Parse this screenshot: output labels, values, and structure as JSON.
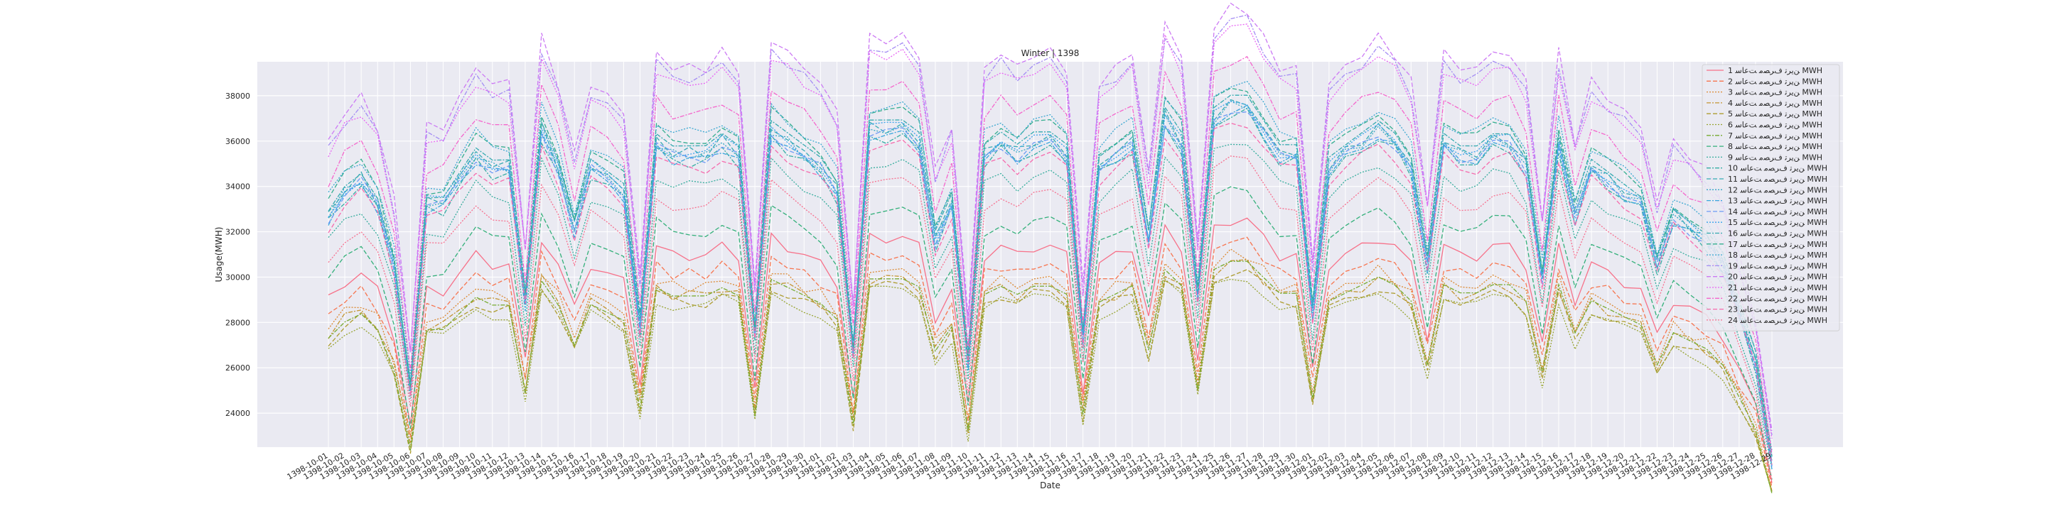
{
  "chart_data": {
    "type": "line",
    "title": "Winter | 1398",
    "xlabel": "Date",
    "ylabel": "Usage(MWH)",
    "ylim": [
      22500,
      39500
    ],
    "yticks": [
      24000,
      26000,
      28000,
      30000,
      32000,
      34000,
      36000,
      38000
    ],
    "grid": true,
    "legend_position": "top-right",
    "x": [
      "1398-10-01",
      "1398-10-02",
      "1398-10-03",
      "1398-10-04",
      "1398-10-05",
      "1398-10-06",
      "1398-10-07",
      "1398-10-08",
      "1398-10-09",
      "1398-10-10",
      "1398-10-11",
      "1398-10-12",
      "1398-10-13",
      "1398-10-14",
      "1398-10-15",
      "1398-10-16",
      "1398-10-17",
      "1398-10-18",
      "1398-10-19",
      "1398-10-20",
      "1398-10-21",
      "1398-10-22",
      "1398-10-23",
      "1398-10-24",
      "1398-10-25",
      "1398-10-26",
      "1398-10-27",
      "1398-10-28",
      "1398-10-29",
      "1398-10-30",
      "1398-11-01",
      "1398-11-02",
      "1398-11-03",
      "1398-11-04",
      "1398-11-05",
      "1398-11-06",
      "1398-11-07",
      "1398-11-08",
      "1398-11-09",
      "1398-11-10",
      "1398-11-11",
      "1398-11-12",
      "1398-11-13",
      "1398-11-14",
      "1398-11-15",
      "1398-11-16",
      "1398-11-17",
      "1398-11-18",
      "1398-11-19",
      "1398-11-20",
      "1398-11-21",
      "1398-11-22",
      "1398-11-23",
      "1398-11-24",
      "1398-11-25",
      "1398-11-26",
      "1398-11-27",
      "1398-11-28",
      "1398-11-29",
      "1398-11-30",
      "1398-12-01",
      "1398-12-02",
      "1398-12-03",
      "1398-12-04",
      "1398-12-05",
      "1398-12-06",
      "1398-12-07",
      "1398-12-08",
      "1398-12-09",
      "1398-12-10",
      "1398-12-11",
      "1398-12-12",
      "1398-12-13",
      "1398-12-14",
      "1398-12-15",
      "1398-12-16",
      "1398-12-17",
      "1398-12-18",
      "1398-12-19",
      "1398-12-20",
      "1398-12-21",
      "1398-12-22",
      "1398-12-23",
      "1398-12-24",
      "1398-12-25",
      "1398-12-26",
      "1398-12-27",
      "1398-12-28",
      "1398-12-29"
    ],
    "series_template": {
      "base": [
        1.0,
        1.02,
        1.03,
        1.01,
        0.96,
        0.86,
        1.01,
        1.01,
        1.03,
        1.05,
        1.04,
        1.04,
        0.93,
        1.07,
        1.04,
        0.99,
        1.04,
        1.03,
        1.02,
        0.91,
        1.06,
        1.05,
        1.05,
        1.05,
        1.06,
        1.05,
        0.9,
        1.07,
        1.06,
        1.05,
        1.04,
        1.02,
        0.89,
        1.07,
        1.07,
        1.07,
        1.06,
        0.98,
        1.01,
        0.88,
        1.05,
        1.06,
        1.05,
        1.06,
        1.06,
        1.05,
        0.9,
        1.04,
        1.05,
        1.06,
        0.98,
        1.08,
        1.06,
        0.93,
        1.08,
        1.09,
        1.09,
        1.07,
        1.05,
        1.05,
        0.92,
        1.04,
        1.05,
        1.06,
        1.07,
        1.06,
        1.04,
        0.96,
        1.06,
        1.05,
        1.05,
        1.06,
        1.06,
        1.04,
        0.95,
        1.06,
        1.0,
        1.04,
        1.03,
        1.02,
        1.01,
        0.96,
        1.0,
        0.99,
        0.98,
        0.96,
        0.92,
        0.88,
        0.8
      ],
      "comment_free": true
    },
    "series": [
      {
        "name": "ﻦﯾﺮﺗ ﻑﺮﺼﻣ ﺖﻋﺎﺳ 1 MWH",
        "color": "#f77189",
        "dash": "",
        "level": 29000,
        "amp": 0.35
      },
      {
        "name": "ﻦﯾﺮﺗ ﻑﺮﺼﻣ ﺖﻋﺎﺳ 2 MWH",
        "color": "#f7754f",
        "dash": "6,3",
        "level": 28300,
        "amp": 0.3
      },
      {
        "name": "ﻦﯾﺮﺗ ﻑﺮﺼﻣ ﺖﻋﺎﺳ 3 MWH",
        "color": "#dc8932",
        "dash": "2,2",
        "level": 27800,
        "amp": 0.28
      },
      {
        "name": "ﻦﯾﺮﺗ ﻑﺮﺼﻣ ﺖﻋﺎﺳ 4 MWH",
        "color": "#c39532",
        "dash": "6,2,2,2",
        "level": 27500,
        "amp": 0.26
      },
      {
        "name": "ﻦﯾﺮﺗ ﻑﺮﺼﻣ ﺖﻋﺎﺳ 5 MWH",
        "color": "#ae9d31",
        "dash": "6,3",
        "level": 27200,
        "amp": 0.25
      },
      {
        "name": "ﻦﯾﺮﺗ ﻑﺮﺼﻣ ﺖﻋﺎﺳ 6 MWH",
        "color": "#97a431",
        "dash": "2,2",
        "level": 27000,
        "amp": 0.25
      },
      {
        "name": "ﻦﯾﺮﺗ ﻑﺮﺼﻣ ﺖﻋﺎﺳ 7 MWH",
        "color": "#77ab31",
        "dash": "6,2,2,2",
        "level": 27300,
        "amp": 0.3
      },
      {
        "name": "ﻦﯾﺮﺗ ﻑﺮﺼﻣ ﺖﻋﺎﺳ 8 MWH",
        "color": "#33b07a",
        "dash": "6,3",
        "level": 29800,
        "amp": 0.5
      },
      {
        "name": "ﻦﯾﺮﺗ ﻑﺮﺼﻣ ﺖﻋﺎﺳ 9 MWH",
        "color": "#35ad9c",
        "dash": "2,2",
        "level": 31500,
        "amp": 0.6
      },
      {
        "name": "ﻦﯾﺮﺗ ﻑﺮﺼﻣ ﺖﻋﺎﺳ 10 MWH",
        "color": "#36ada4",
        "dash": "6,2,2,2",
        "level": 32400,
        "amp": 0.65
      },
      {
        "name": "ﻦﯾﺮﺗ ﻑﺮﺼﻣ ﺖﻋﺎﺳ 11 MWH",
        "color": "#37abb4",
        "dash": "6,3",
        "level": 32800,
        "amp": 0.65
      },
      {
        "name": "ﻦﯾﺮﺗ ﻑﺮﺼﻣ ﺖﻋﺎﺳ 12 MWH",
        "color": "#38a9c5",
        "dash": "2,2",
        "level": 32700,
        "amp": 0.65
      },
      {
        "name": "ﻦﯾﺮﺗ ﻑﺮﺼﻣ ﺖﻋﺎﺳ 13 MWH",
        "color": "#3aa6dd",
        "dash": "6,2,2,2",
        "level": 32500,
        "amp": 0.65
      },
      {
        "name": "ﻦﯾﺮﺗ ﻑﺮﺼﻣ ﺖﻋﺎﺳ 14 MWH",
        "color": "#6e9bf4",
        "dash": "6,3",
        "level": 32600,
        "amp": 0.65
      },
      {
        "name": "ﻦﯾﺮﺗ ﻑﺮﺼﻣ ﺖﻋﺎﺳ 15 MWH",
        "color": "#3ba3ec",
        "dash": "2,2",
        "level": 32800,
        "amp": 0.65
      },
      {
        "name": "ﻦﯾﺮﺗ ﻑﺮﺼﻣ ﺖﻋﺎﺳ 16 MWH",
        "color": "#36aab0",
        "dash": "6,2,2,2",
        "level": 32900,
        "amp": 0.65
      },
      {
        "name": "ﻦﯾﺮﺗ ﻑﺮﺼﻣ ﺖﻋﺎﺳ 17 MWH",
        "color": "#34ae8f",
        "dash": "6,3",
        "level": 33300,
        "amp": 0.7
      },
      {
        "name": "ﻦﯾﺮﺗ ﻑﺮﺼﻣ ﺖﻋﺎﺳ 18 MWH",
        "color": "#39a7d0",
        "dash": "2,2",
        "level": 33500,
        "amp": 0.7
      },
      {
        "name": "ﻦﯾﺮﺗ ﻑﺮﺼﻣ ﺖﻋﺎﺳ 19 MWH",
        "color": "#a48cf4",
        "dash": "6,2,2,2",
        "level": 35600,
        "amp": 0.8
      },
      {
        "name": "ﻦﯾﺮﺗ ﻑﺮﺼﻣ ﺖﻋﺎﺳ 20 MWH",
        "color": "#cc7af4",
        "dash": "6,3",
        "level": 36000,
        "amp": 0.8
      },
      {
        "name": "ﻦﯾﺮﺗ ﻑﺮﺼﻣ ﺖﻋﺎﺳ 21 MWH",
        "color": "#e866f4",
        "dash": "2,2",
        "level": 35400,
        "amp": 0.78
      },
      {
        "name": "ﻦﯾﺮﺗ ﻑﺮﺼﻣ ﺖﻋﺎﺳ 22 MWH",
        "color": "#f565cc",
        "dash": "6,2,2,2",
        "level": 34200,
        "amp": 0.75
      },
      {
        "name": "ﻦﯾﺮﺗ ﻑﺮﺼﻣ ﺖﻋﺎﺳ 23 MWH",
        "color": "#f66bad",
        "dash": "6,3",
        "level": 32200,
        "amp": 0.6
      },
      {
        "name": "ﻦﯾﺮﺗ ﻑﺮﺼﻣ ﺖﻋﺎﺳ 24 MWH",
        "color": "#f7708f",
        "dash": "2,2",
        "level": 30800,
        "amp": 0.55
      }
    ]
  }
}
